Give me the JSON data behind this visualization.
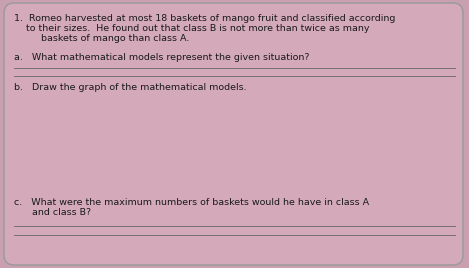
{
  "bg_color": "#c8a0b0",
  "card_color": "#d4aaba",
  "border_color": "#999999",
  "text_color": "#1a1a1a",
  "line_color": "#666666",
  "title_line1": "1.  Romeo harvested at most 18 baskets of mango fruit and classified according",
  "title_line2": "    to their sizes.  He found out that class B is not more than twice as many",
  "title_line3": "         baskets of mango than class A.",
  "qa_text": "a.   What mathematical models represent the given situation?",
  "qb_text": "b.   Draw the graph of the mathematical models.",
  "qc_line1": "c.   What were the maximum numbers of baskets would he have in class A",
  "qc_line2": "      and class B?",
  "font_size_title": 6.8,
  "font_size_q": 6.8
}
